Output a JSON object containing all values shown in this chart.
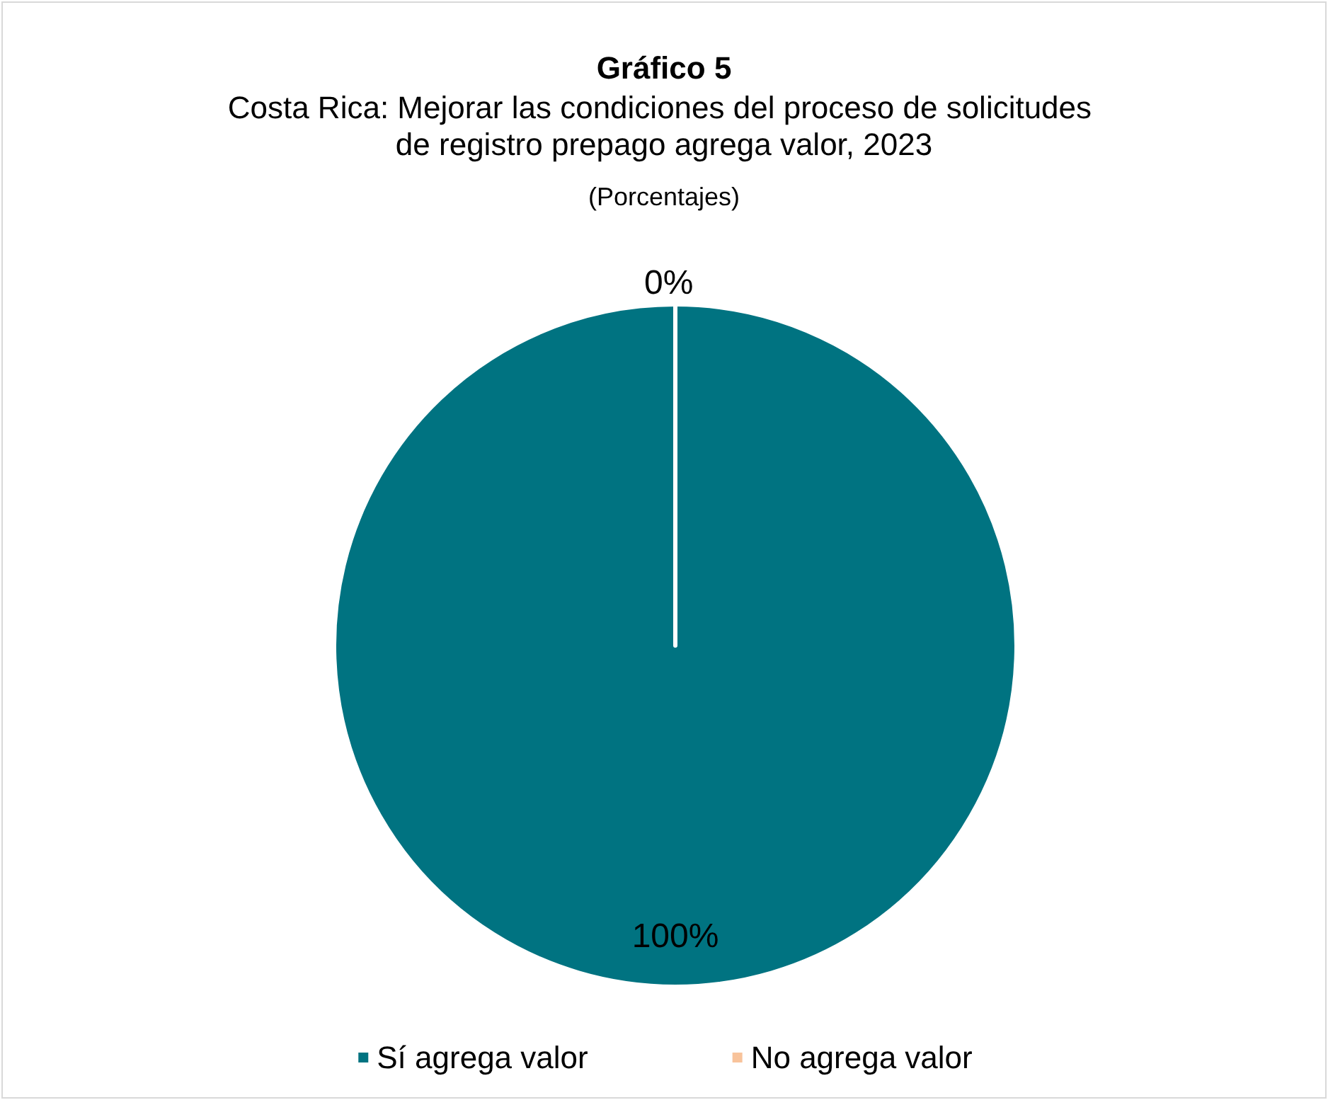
{
  "chart_data": {
    "type": "pie",
    "title": "Gráfico 5",
    "subtitle": "Costa Rica: Mejorar las condiciones del proceso de solicitudes de registro prepago agrega valor, 2023",
    "annotations": [
      "(Porcentajes)"
    ],
    "categories": [
      "Sí agrega valor",
      "No agrega valor"
    ],
    "values": [
      100,
      0
    ],
    "colors": [
      "#007381",
      "#f8c39b"
    ],
    "value_labels": [
      "100%",
      "0%"
    ],
    "legend": "bottom"
  }
}
